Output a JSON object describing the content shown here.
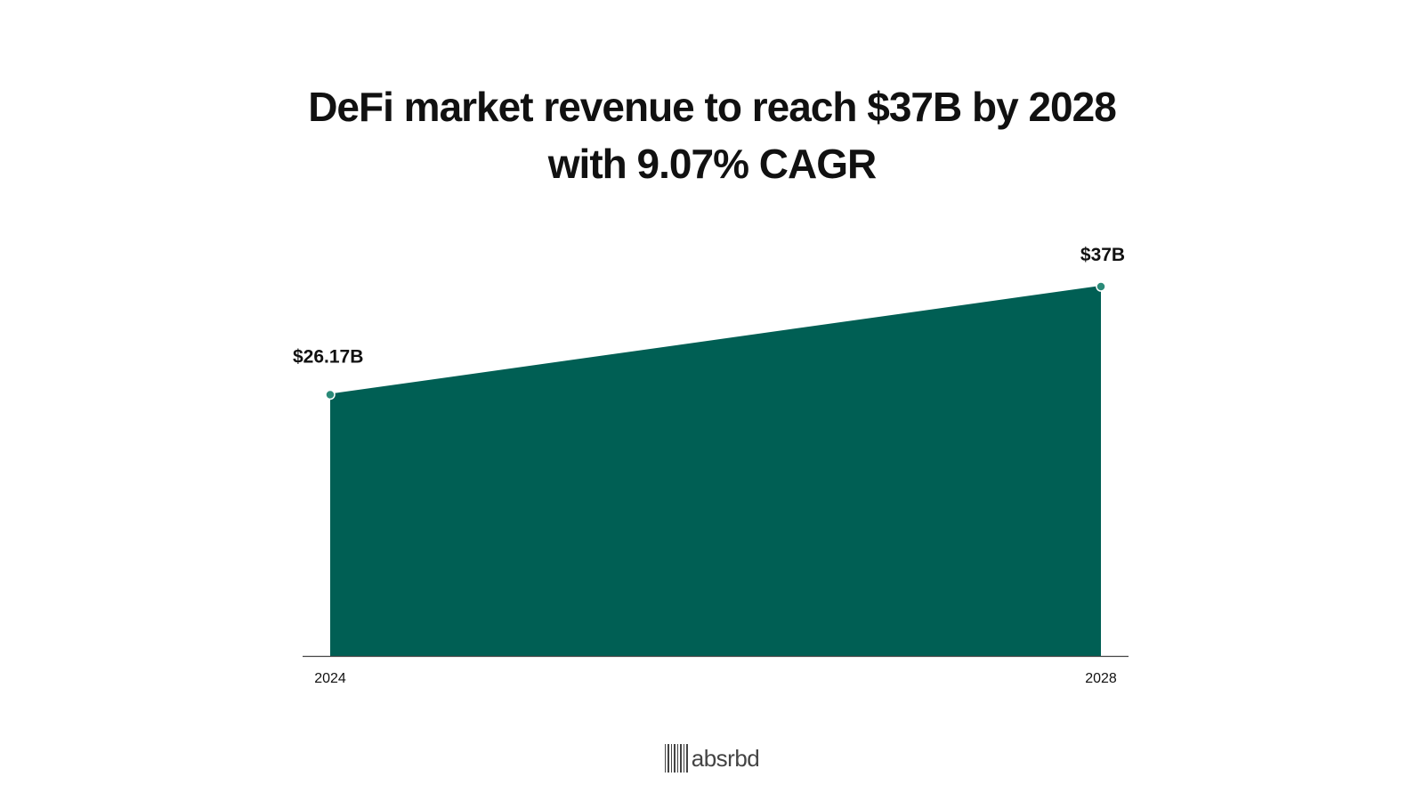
{
  "title": {
    "line1": "DeFi market revenue to reach $37B by 2028",
    "line2": "with 9.07% CAGR"
  },
  "brand": {
    "name": "absrbd"
  },
  "colors": {
    "area_fill": "#005f54",
    "point": "#2a8a78",
    "axis": "#444444",
    "text": "#111111"
  },
  "chart_data": {
    "type": "area",
    "title": "DeFi market revenue to reach $37B by 2028 with 9.07% CAGR",
    "categories": [
      "2024",
      "2028"
    ],
    "values": [
      26.17,
      37
    ],
    "data_labels": [
      "$26.17B",
      "$37B"
    ],
    "unit": "USD billions",
    "ylim": [
      0,
      37
    ],
    "xlabel": "",
    "ylabel": "",
    "grid": false,
    "legend": "none"
  }
}
